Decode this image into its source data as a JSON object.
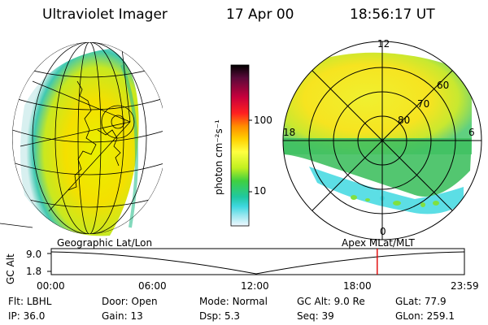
{
  "header": {
    "instrument": "Ultraviolet Imager",
    "date": "17 Apr 00",
    "time": "18:56:17 UT"
  },
  "colorbar": {
    "unit_label": "photon cm⁻²s⁻¹",
    "ticks": [
      "100",
      "10"
    ],
    "colors": [
      "#000000",
      "#5a0a3a",
      "#c8003c",
      "#ff2020",
      "#ff8c00",
      "#ffd000",
      "#ffff40",
      "#c0f020",
      "#40d040",
      "#20c8a0",
      "#40d8e0",
      "#a0e8f0",
      "#f0f8ff"
    ]
  },
  "geo_panel": {
    "label": "Geographic Lat/Lon"
  },
  "polar_panel": {
    "label": "Apex  MLat/MLT",
    "mlt_labels": {
      "top": "12",
      "left": "18",
      "right": "6",
      "bottom": "0"
    },
    "mlat_labels": [
      "60",
      "70",
      "80"
    ]
  },
  "timeline": {
    "axis_label": "GC Alt",
    "y_ticks": [
      "9.0",
      "1.8"
    ],
    "x_ticks": [
      "00:00",
      "06:00",
      "12:00",
      "18:00",
      "23:59"
    ],
    "marker_color": "#e00000",
    "marker_time_fraction": 0.789
  },
  "info": {
    "row1": [
      {
        "key": "Flt:",
        "value": "LBHL"
      },
      {
        "key": "Door:",
        "value": "Open"
      },
      {
        "key": "Mode:",
        "value": "Normal"
      },
      {
        "key": "GC Alt:",
        "value": "9.0 Re"
      },
      {
        "key": "GLat:",
        "value": "77.9"
      }
    ],
    "row2": [
      {
        "key": "IP:",
        "value": "36.0"
      },
      {
        "key": "Gain:",
        "value": "13"
      },
      {
        "key": "Dsp:",
        "value": "5.3"
      },
      {
        "key": "Seq:",
        "value": "39"
      },
      {
        "key": "GLon:",
        "value": "259.1"
      }
    ]
  }
}
